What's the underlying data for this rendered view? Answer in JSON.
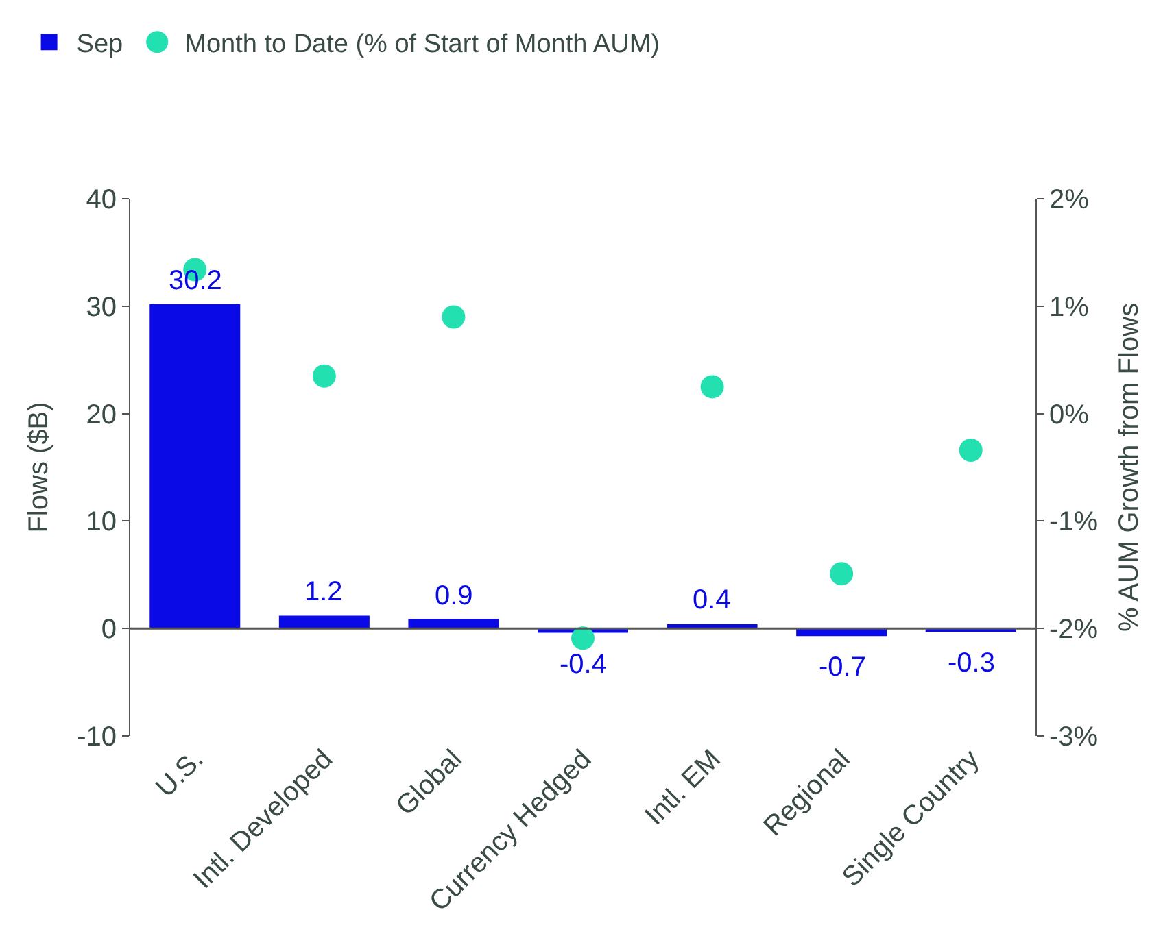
{
  "chart_data": {
    "type": "bar",
    "categories": [
      "U.S.",
      "Intl. Developed",
      "Global",
      "Currency Hedged",
      "Intl. EM",
      "Regional",
      "Single Country"
    ],
    "series": [
      {
        "name": "Sep",
        "color": "#0a0ae6",
        "values": [
          30.2,
          1.2,
          0.9,
          -0.4,
          0.4,
          -0.7,
          -0.3
        ],
        "value_labels": [
          "30.2",
          "1.2",
          "0.9",
          "-0.4",
          "0.4",
          "-0.7",
          "-0.3"
        ]
      },
      {
        "name": "Month to Date (% of Start of Month AUM)",
        "type": "scatter",
        "axis": "y2",
        "color": "#22e0b0",
        "marker": "circle",
        "values": [
          1.34,
          0.35,
          0.9,
          -2.09,
          0.25,
          -1.49,
          -0.34
        ]
      }
    ],
    "ylabel": "Flows ($B)",
    "y2label": "% AUM Growth from Flows",
    "ylim": [
      -10,
      40
    ],
    "yticks": [
      -10,
      0,
      10,
      20,
      30,
      40
    ],
    "y2lim": [
      -3,
      2
    ],
    "y2ticks": [
      {
        "value": -3,
        "label": "-3%"
      },
      {
        "value": -2,
        "label": "-2%"
      },
      {
        "value": -1,
        "label": "-1%"
      },
      {
        "value": 0,
        "label": "0%"
      },
      {
        "value": 1,
        "label": "1%"
      },
      {
        "value": 2,
        "label": "2%"
      }
    ],
    "legend": "top left"
  }
}
